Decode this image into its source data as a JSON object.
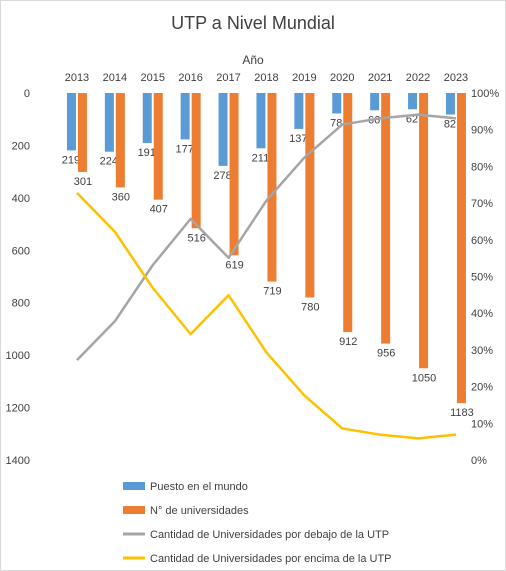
{
  "chart_data": {
    "type": "bar",
    "title": "UTP a Nivel Mundial",
    "xlabel": "Año",
    "categories": [
      "2013",
      "2014",
      "2015",
      "2016",
      "2017",
      "2018",
      "2019",
      "2020",
      "2021",
      "2022",
      "2023"
    ],
    "left_axis": {
      "ticks": [
        0,
        200,
        400,
        600,
        800,
        1000,
        1200,
        1400
      ],
      "range": [
        0,
        1400
      ],
      "reversed": true
    },
    "right_axis": {
      "ticks": [
        "100%",
        "90%",
        "80%",
        "70%",
        "60%",
        "50%",
        "40%",
        "30%",
        "20%",
        "10%",
        "0%"
      ],
      "range": [
        0,
        1
      ],
      "unit": "%"
    },
    "grid": false,
    "legend_position": "bottom",
    "series": [
      {
        "name": "Puesto en el mundo",
        "type": "bar",
        "axis": "left",
        "color": "#5B9BD5",
        "values": [
          219,
          224,
          191,
          177,
          278,
          211,
          137,
          78,
          66,
          62,
          82
        ]
      },
      {
        "name": "N° de universidades",
        "type": "bar",
        "axis": "left",
        "color": "#ED7D31",
        "values": [
          301,
          360,
          407,
          516,
          619,
          719,
          780,
          912,
          956,
          1050,
          1183
        ]
      },
      {
        "name": "Cantidad de Universidades por debajo de la UTP",
        "type": "line",
        "axis": "right",
        "color": "#A5A5A5",
        "values": [
          0.272,
          0.378,
          0.531,
          0.657,
          0.551,
          0.707,
          0.824,
          0.914,
          0.931,
          0.941,
          0.931
        ]
      },
      {
        "name": "Cantidad de Universidades por encima de la UTP",
        "type": "line",
        "axis": "right",
        "color": "#FFC000",
        "values": [
          0.728,
          0.622,
          0.469,
          0.343,
          0.449,
          0.293,
          0.176,
          0.086,
          0.069,
          0.059,
          0.069
        ]
      }
    ]
  }
}
